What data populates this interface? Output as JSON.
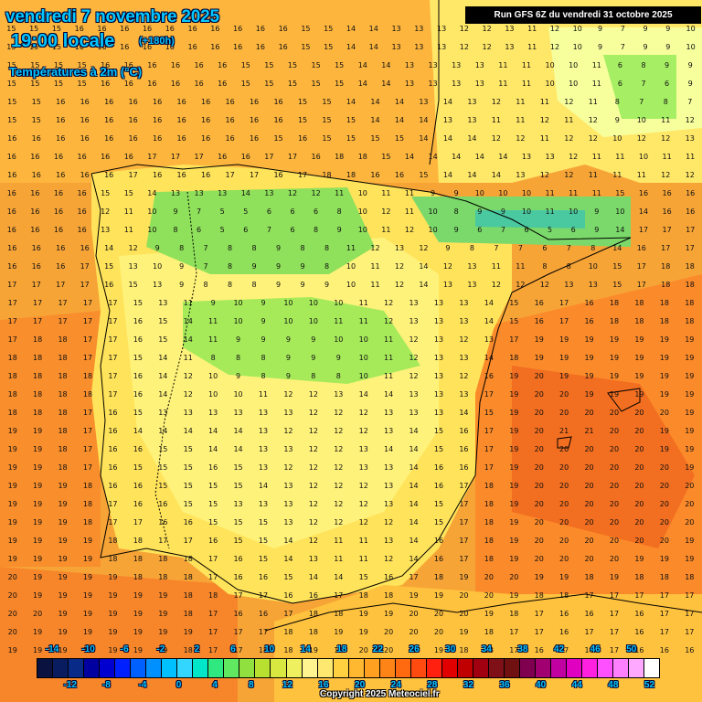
{
  "header": {
    "date": "vendredi 7 novembre 2025",
    "time": "19:00 locale",
    "lead": "(+180h)",
    "parameter": "Températures à 2m (°C)",
    "run": "Run GFS 6Z du vendredi 31 octobre 2025"
  },
  "footer": {
    "copyright": "Copyright 2025 Meteociel.fr"
  },
  "legend": {
    "upper_labels": [
      "-14",
      "-10",
      "-6",
      "-2",
      "2",
      "6",
      "10",
      "14",
      "18",
      "22",
      "26",
      "30",
      "34",
      "38",
      "42",
      "46",
      "50"
    ],
    "lower_labels": [
      "-12",
      "-8",
      "-4",
      "0",
      "4",
      "8",
      "12",
      "16",
      "20",
      "24",
      "28",
      "32",
      "36",
      "40",
      "44",
      "48",
      "52"
    ],
    "colors": [
      "#0a1240",
      "#0a1c60",
      "#0a2a88",
      "#0000a0",
      "#0000d0",
      "#0020ff",
      "#0060ff",
      "#0090ff",
      "#00c0ff",
      "#33d6ff",
      "#00e6c8",
      "#30e880",
      "#60e860",
      "#90e040",
      "#b8e030",
      "#d8e840",
      "#eef060",
      "#fff490",
      "#ffe870",
      "#ffd040",
      "#ffb830",
      "#ffa020",
      "#ff8418",
      "#ff6a10",
      "#ff4a10",
      "#ff2010",
      "#e00000",
      "#c00000",
      "#a00010",
      "#801018",
      "#701010",
      "#800050",
      "#a00070",
      "#c000a0",
      "#e000c0",
      "#ff20e0",
      "#ff50ff",
      "#ff80ff",
      "#ffa8ff",
      "#ffffff"
    ]
  },
  "palette": {
    "sea_warm": "#f58c28",
    "land_cool_green": "#8fe05a",
    "land_yellow": "#fff06e",
    "outline": "#000000"
  },
  "grid": {
    "rows": [
      {
        "y": 22,
        "values": [
          "15",
          "15",
          "15",
          "16",
          "16",
          "16",
          "16",
          "16",
          "16",
          "16",
          "16",
          "16",
          "16",
          "15",
          "15",
          "14",
          "14",
          "13",
          "13",
          "13",
          "12",
          "12",
          "13",
          "11",
          "12",
          "10",
          "9",
          "7",
          "9",
          "9",
          "10"
        ]
      },
      {
        "y": 42,
        "values": [
          "15",
          "15",
          "15",
          "16",
          "16",
          "16",
          "16",
          "16",
          "16",
          "16",
          "16",
          "16",
          "16",
          "15",
          "15",
          "14",
          "14",
          "13",
          "13",
          "13",
          "12",
          "12",
          "13",
          "11",
          "12",
          "10",
          "9",
          "7",
          "9",
          "9",
          "10"
        ]
      },
      {
        "y": 62,
        "values": [
          "15",
          "15",
          "15",
          "15",
          "16",
          "16",
          "16",
          "16",
          "16",
          "16",
          "15",
          "15",
          "15",
          "15",
          "15",
          "14",
          "14",
          "13",
          "13",
          "13",
          "13",
          "11",
          "11",
          "10",
          "10",
          "11",
          "6",
          "8",
          "9",
          "9"
        ]
      },
      {
        "y": 82,
        "values": [
          "15",
          "15",
          "15",
          "15",
          "16",
          "16",
          "16",
          "16",
          "16",
          "16",
          "15",
          "15",
          "15",
          "15",
          "15",
          "14",
          "14",
          "13",
          "13",
          "13",
          "13",
          "11",
          "11",
          "10",
          "10",
          "11",
          "6",
          "7",
          "6",
          "9"
        ]
      },
      {
        "y": 102,
        "values": [
          "15",
          "15",
          "16",
          "16",
          "16",
          "16",
          "16",
          "16",
          "16",
          "16",
          "16",
          "16",
          "15",
          "15",
          "14",
          "14",
          "14",
          "13",
          "14",
          "13",
          "12",
          "11",
          "11",
          "12",
          "11",
          "8",
          "7",
          "8",
          "7"
        ]
      },
      {
        "y": 122,
        "values": [
          "15",
          "15",
          "16",
          "16",
          "16",
          "16",
          "16",
          "16",
          "16",
          "16",
          "16",
          "16",
          "15",
          "15",
          "15",
          "14",
          "14",
          "14",
          "13",
          "13",
          "11",
          "11",
          "12",
          "11",
          "12",
          "9",
          "10",
          "11",
          "12"
        ]
      },
      {
        "y": 142,
        "values": [
          "16",
          "16",
          "16",
          "16",
          "16",
          "16",
          "16",
          "16",
          "16",
          "16",
          "16",
          "15",
          "16",
          "15",
          "15",
          "15",
          "15",
          "14",
          "14",
          "14",
          "12",
          "12",
          "11",
          "12",
          "12",
          "10",
          "12",
          "12",
          "13"
        ]
      },
      {
        "y": 162,
        "values": [
          "16",
          "16",
          "16",
          "16",
          "16",
          "16",
          "17",
          "17",
          "17",
          "16",
          "16",
          "17",
          "17",
          "16",
          "18",
          "18",
          "15",
          "14",
          "14",
          "14",
          "14",
          "14",
          "13",
          "13",
          "12",
          "11",
          "11",
          "10",
          "11",
          "11"
        ]
      },
      {
        "y": 182,
        "values": [
          "16",
          "16",
          "16",
          "16",
          "16",
          "17",
          "16",
          "16",
          "16",
          "17",
          "17",
          "16",
          "17",
          "18",
          "18",
          "16",
          "16",
          "15",
          "14",
          "14",
          "14",
          "13",
          "12",
          "12",
          "11",
          "11",
          "11",
          "12",
          "12"
        ]
      },
      {
        "y": 202,
        "values": [
          "16",
          "16",
          "16",
          "16",
          "15",
          "15",
          "14",
          "13",
          "13",
          "13",
          "14",
          "13",
          "12",
          "12",
          "11",
          "10",
          "11",
          "11",
          "9",
          "9",
          "10",
          "10",
          "10",
          "11",
          "11",
          "11",
          "15",
          "16",
          "16",
          "16"
        ]
      },
      {
        "y": 222,
        "values": [
          "16",
          "16",
          "16",
          "16",
          "12",
          "11",
          "10",
          "9",
          "7",
          "5",
          "5",
          "6",
          "6",
          "6",
          "8",
          "10",
          "12",
          "11",
          "10",
          "8",
          "9",
          "9",
          "10",
          "11",
          "10",
          "9",
          "10",
          "14",
          "16",
          "16"
        ]
      },
      {
        "y": 242,
        "values": [
          "16",
          "16",
          "16",
          "16",
          "13",
          "11",
          "10",
          "8",
          "6",
          "5",
          "6",
          "7",
          "6",
          "8",
          "9",
          "10",
          "11",
          "12",
          "10",
          "9",
          "6",
          "7",
          "6",
          "5",
          "6",
          "9",
          "14",
          "17",
          "17",
          "17"
        ]
      },
      {
        "y": 262,
        "values": [
          "16",
          "16",
          "16",
          "16",
          "14",
          "12",
          "9",
          "8",
          "7",
          "8",
          "8",
          "9",
          "8",
          "8",
          "11",
          "12",
          "13",
          "12",
          "9",
          "8",
          "7",
          "7",
          "6",
          "7",
          "8",
          "14",
          "16",
          "17",
          "17"
        ]
      },
      {
        "y": 282,
        "values": [
          "16",
          "16",
          "16",
          "17",
          "15",
          "13",
          "10",
          "9",
          "7",
          "8",
          "9",
          "9",
          "9",
          "8",
          "10",
          "11",
          "12",
          "14",
          "12",
          "13",
          "11",
          "11",
          "8",
          "8",
          "10",
          "15",
          "17",
          "18",
          "18"
        ]
      },
      {
        "y": 302,
        "values": [
          "17",
          "17",
          "17",
          "17",
          "16",
          "15",
          "13",
          "9",
          "8",
          "8",
          "8",
          "9",
          "9",
          "9",
          "10",
          "11",
          "12",
          "14",
          "13",
          "13",
          "12",
          "12",
          "12",
          "13",
          "13",
          "15",
          "17",
          "18",
          "18"
        ]
      },
      {
        "y": 322,
        "values": [
          "17",
          "17",
          "17",
          "17",
          "17",
          "15",
          "13",
          "11",
          "9",
          "10",
          "9",
          "10",
          "10",
          "10",
          "11",
          "12",
          "13",
          "13",
          "13",
          "14",
          "15",
          "16",
          "17",
          "16",
          "18",
          "18",
          "18",
          "18"
        ]
      },
      {
        "y": 342,
        "values": [
          "17",
          "17",
          "17",
          "17",
          "17",
          "16",
          "15",
          "14",
          "11",
          "10",
          "9",
          "10",
          "10",
          "11",
          "11",
          "12",
          "13",
          "13",
          "13",
          "14",
          "15",
          "16",
          "17",
          "16",
          "18",
          "18",
          "18",
          "18"
        ]
      },
      {
        "y": 362,
        "values": [
          "17",
          "18",
          "18",
          "17",
          "17",
          "16",
          "15",
          "14",
          "11",
          "9",
          "9",
          "9",
          "9",
          "10",
          "10",
          "11",
          "12",
          "13",
          "12",
          "13",
          "17",
          "19",
          "19",
          "19",
          "19",
          "19",
          "19",
          "19"
        ]
      },
      {
        "y": 382,
        "values": [
          "18",
          "18",
          "18",
          "17",
          "17",
          "15",
          "14",
          "11",
          "8",
          "8",
          "8",
          "9",
          "9",
          "9",
          "10",
          "11",
          "12",
          "13",
          "13",
          "14",
          "18",
          "19",
          "19",
          "19",
          "19",
          "19",
          "19",
          "19"
        ]
      },
      {
        "y": 402,
        "values": [
          "18",
          "18",
          "18",
          "18",
          "17",
          "16",
          "14",
          "12",
          "10",
          "9",
          "8",
          "9",
          "8",
          "8",
          "10",
          "11",
          "12",
          "13",
          "12",
          "16",
          "19",
          "20",
          "19",
          "19",
          "19",
          "19",
          "19",
          "19"
        ]
      },
      {
        "y": 422,
        "values": [
          "18",
          "18",
          "18",
          "18",
          "17",
          "16",
          "14",
          "12",
          "10",
          "10",
          "11",
          "12",
          "12",
          "13",
          "14",
          "14",
          "13",
          "13",
          "13",
          "17",
          "19",
          "20",
          "20",
          "19",
          "19",
          "19",
          "19",
          "19"
        ]
      },
      {
        "y": 442,
        "values": [
          "18",
          "18",
          "18",
          "17",
          "16",
          "15",
          "13",
          "13",
          "13",
          "13",
          "13",
          "13",
          "12",
          "12",
          "12",
          "13",
          "13",
          "13",
          "14",
          "15",
          "19",
          "20",
          "20",
          "20",
          "20",
          "20",
          "20",
          "19"
        ]
      },
      {
        "y": 462,
        "values": [
          "19",
          "19",
          "18",
          "17",
          "16",
          "14",
          "14",
          "14",
          "14",
          "14",
          "13",
          "12",
          "12",
          "12",
          "12",
          "13",
          "14",
          "15",
          "16",
          "17",
          "19",
          "20",
          "21",
          "21",
          "20",
          "20",
          "19",
          "19"
        ]
      },
      {
        "y": 482,
        "values": [
          "19",
          "19",
          "18",
          "17",
          "16",
          "16",
          "15",
          "15",
          "14",
          "14",
          "13",
          "13",
          "12",
          "12",
          "13",
          "14",
          "14",
          "15",
          "16",
          "17",
          "19",
          "20",
          "20",
          "20",
          "20",
          "20",
          "19",
          "19"
        ]
      },
      {
        "y": 502,
        "values": [
          "19",
          "19",
          "18",
          "17",
          "16",
          "15",
          "15",
          "15",
          "16",
          "15",
          "13",
          "12",
          "12",
          "12",
          "13",
          "13",
          "14",
          "16",
          "16",
          "17",
          "19",
          "20",
          "20",
          "20",
          "20",
          "20",
          "20",
          "19"
        ]
      },
      {
        "y": 522,
        "values": [
          "19",
          "19",
          "19",
          "18",
          "16",
          "16",
          "15",
          "15",
          "15",
          "15",
          "14",
          "13",
          "12",
          "12",
          "12",
          "13",
          "14",
          "16",
          "17",
          "18",
          "19",
          "20",
          "20",
          "20",
          "20",
          "20",
          "20",
          "20"
        ]
      },
      {
        "y": 542,
        "values": [
          "19",
          "19",
          "19",
          "18",
          "17",
          "16",
          "16",
          "15",
          "15",
          "13",
          "13",
          "13",
          "12",
          "12",
          "12",
          "13",
          "14",
          "15",
          "17",
          "18",
          "19",
          "20",
          "20",
          "20",
          "20",
          "20",
          "20",
          "20"
        ]
      },
      {
        "y": 562,
        "values": [
          "19",
          "19",
          "19",
          "18",
          "17",
          "17",
          "16",
          "16",
          "15",
          "15",
          "15",
          "13",
          "12",
          "12",
          "12",
          "12",
          "14",
          "15",
          "17",
          "18",
          "19",
          "20",
          "20",
          "20",
          "20",
          "20",
          "20",
          "20"
        ]
      },
      {
        "y": 582,
        "values": [
          "19",
          "19",
          "19",
          "19",
          "18",
          "18",
          "17",
          "17",
          "16",
          "15",
          "15",
          "14",
          "12",
          "11",
          "11",
          "13",
          "14",
          "16",
          "17",
          "18",
          "19",
          "20",
          "20",
          "20",
          "20",
          "20",
          "20",
          "19"
        ]
      },
      {
        "y": 602,
        "values": [
          "19",
          "19",
          "19",
          "19",
          "18",
          "18",
          "18",
          "18",
          "17",
          "16",
          "15",
          "14",
          "13",
          "11",
          "11",
          "12",
          "14",
          "16",
          "17",
          "18",
          "19",
          "20",
          "20",
          "20",
          "20",
          "19",
          "19",
          "19"
        ]
      },
      {
        "y": 622,
        "values": [
          "20",
          "19",
          "19",
          "19",
          "19",
          "18",
          "18",
          "18",
          "17",
          "16",
          "16",
          "15",
          "14",
          "14",
          "15",
          "16",
          "17",
          "18",
          "19",
          "20",
          "20",
          "19",
          "19",
          "18",
          "19",
          "18",
          "18",
          "18"
        ]
      },
      {
        "y": 642,
        "values": [
          "20",
          "19",
          "19",
          "19",
          "19",
          "19",
          "19",
          "18",
          "18",
          "17",
          "17",
          "16",
          "16",
          "17",
          "18",
          "18",
          "19",
          "19",
          "20",
          "20",
          "19",
          "18",
          "18",
          "17",
          "17",
          "17",
          "17",
          "17"
        ]
      },
      {
        "y": 662,
        "values": [
          "20",
          "20",
          "19",
          "19",
          "19",
          "19",
          "19",
          "18",
          "17",
          "16",
          "16",
          "17",
          "18",
          "18",
          "19",
          "19",
          "20",
          "20",
          "20",
          "19",
          "18",
          "17",
          "16",
          "16",
          "17",
          "16",
          "17",
          "17"
        ]
      },
      {
        "y": 682,
        "values": [
          "20",
          "19",
          "19",
          "19",
          "19",
          "19",
          "19",
          "19",
          "17",
          "17",
          "17",
          "18",
          "18",
          "19",
          "19",
          "20",
          "20",
          "20",
          "19",
          "18",
          "17",
          "17",
          "16",
          "17",
          "17",
          "16",
          "17",
          "17"
        ]
      },
      {
        "y": 702,
        "values": [
          "19",
          "19",
          "19",
          "19",
          "19",
          "19",
          "19",
          "18",
          "17",
          "17",
          "18",
          "18",
          "19",
          "19",
          "20",
          "20",
          "19",
          "19",
          "18",
          "18",
          "17",
          "16",
          "17",
          "16",
          "17",
          "16",
          "16",
          "16"
        ]
      }
    ]
  }
}
